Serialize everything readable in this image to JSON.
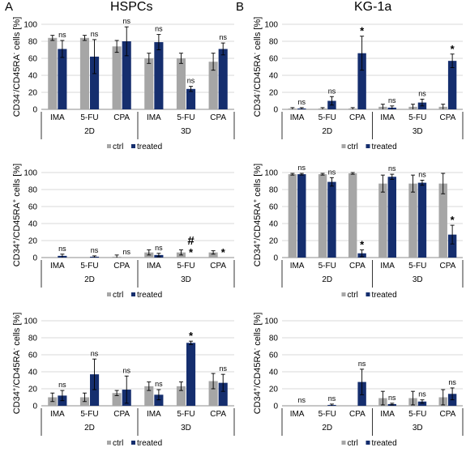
{
  "figure": {
    "panels": [
      {
        "letter": "A",
        "title": "HSPCs"
      },
      {
        "letter": "B",
        "title": "KG-1a"
      }
    ],
    "colors": {
      "ctrl": "#a6a6a6",
      "treated": "#152e6e"
    }
  },
  "chart_data": [
    {
      "type": "bar",
      "panel": "A",
      "row": 1,
      "ylabel_main": "CD34",
      "ylabel_sup1": "-",
      "ylabel_mid": "/CD45RA",
      "ylabel_sup2": "-",
      "ylabel_tail": " cells [%]",
      "ylim": [
        0,
        100
      ],
      "yticks": [
        0,
        20,
        40,
        60,
        80,
        100
      ],
      "categories": [
        "IMA",
        "5-FU",
        "CPA",
        "IMA",
        "5-FU",
        "CPA"
      ],
      "groups": [
        "2D",
        "3D"
      ],
      "series": [
        {
          "name": "ctrl",
          "values": [
            84,
            84,
            74,
            60,
            60,
            56
          ],
          "errors": [
            3,
            3,
            7,
            6,
            6,
            10
          ]
        },
        {
          "name": "treated",
          "values": [
            71,
            62,
            80,
            79,
            24,
            71
          ],
          "errors": [
            10,
            20,
            17,
            9,
            3,
            7
          ]
        }
      ],
      "annotations": [
        "ns",
        "ns",
        "ns",
        "ns",
        "ns",
        "ns"
      ],
      "extra_marks": [],
      "legend": [
        "ctrl",
        "treated"
      ],
      "legend_position": "bottom"
    },
    {
      "type": "bar",
      "panel": "B",
      "row": 1,
      "ylabel_main": "CD34",
      "ylabel_sup1": "-",
      "ylabel_mid": "/CD45RA",
      "ylabel_sup2": "-",
      "ylabel_tail": " cells [%]",
      "ylim": [
        0,
        100
      ],
      "yticks": [
        0,
        20,
        40,
        60,
        80,
        100
      ],
      "categories": [
        "IMA",
        "5-FU",
        "CPA",
        "IMA",
        "5-FU",
        "CPA"
      ],
      "groups": [
        "2D",
        "3D"
      ],
      "series": [
        {
          "name": "ctrl",
          "values": [
            1,
            1,
            1,
            3,
            3,
            3
          ],
          "errors": [
            1,
            1,
            1,
            3,
            3,
            3
          ]
        },
        {
          "name": "treated",
          "values": [
            1,
            10,
            66,
            2,
            8,
            57
          ],
          "errors": [
            1,
            5,
            20,
            2,
            4,
            8
          ]
        }
      ],
      "annotations": [
        "ns",
        "ns",
        "*",
        "ns",
        "ns",
        "*"
      ],
      "extra_marks": [],
      "legend": [
        "ctrl",
        "treated"
      ],
      "legend_position": "bottom"
    },
    {
      "type": "bar",
      "panel": "A",
      "row": 2,
      "ylabel_main": "CD34",
      "ylabel_sup1": "+",
      "ylabel_mid": "/CD45RA",
      "ylabel_sup2": "+",
      "ylabel_tail": " cells [%]",
      "ylim": [
        0,
        100
      ],
      "yticks": [
        0,
        20,
        40,
        60,
        80,
        100
      ],
      "categories": [
        "IMA",
        "5-FU",
        "CPA",
        "IMA",
        "5-FU",
        "CPA"
      ],
      "groups": [
        "2D",
        "3D"
      ],
      "series": [
        {
          "name": "ctrl",
          "values": [
            0,
            0,
            1,
            6,
            6,
            6
          ],
          "errors": [
            0,
            0,
            2,
            3,
            3,
            2
          ]
        },
        {
          "name": "treated",
          "values": [
            2,
            1,
            0,
            3,
            0,
            0
          ],
          "errors": [
            2,
            1,
            0,
            2,
            0,
            0
          ]
        }
      ],
      "annotations": [
        "ns",
        "ns",
        "ns",
        "ns",
        "*",
        "*"
      ],
      "extra_marks": [
        {
          "index": 4,
          "text": "#"
        }
      ],
      "legend": [
        "ctrl",
        "treated"
      ],
      "legend_position": "bottom"
    },
    {
      "type": "bar",
      "panel": "B",
      "row": 2,
      "ylabel_main": "CD34",
      "ylabel_sup1": "+",
      "ylabel_mid": "/CD45RA",
      "ylabel_sup2": "+",
      "ylabel_tail": " cells [%]",
      "ylim": [
        0,
        100
      ],
      "yticks": [
        0,
        20,
        40,
        60,
        80,
        100
      ],
      "categories": [
        "IMA",
        "5-FU",
        "CPA",
        "IMA",
        "5-FU",
        "CPA"
      ],
      "groups": [
        "2D",
        "3D"
      ],
      "series": [
        {
          "name": "ctrl",
          "values": [
            98,
            98,
            99,
            87,
            87,
            87
          ],
          "errors": [
            1,
            1,
            1,
            10,
            10,
            12
          ]
        },
        {
          "name": "treated",
          "values": [
            98,
            89,
            5,
            95,
            88,
            27
          ],
          "errors": [
            1,
            5,
            4,
            3,
            3,
            11
          ]
        }
      ],
      "annotations": [
        "ns",
        "ns",
        "*",
        "ns",
        "ns",
        "*"
      ],
      "extra_marks": [],
      "legend": [
        "ctrl",
        "treated"
      ],
      "legend_position": "bottom"
    },
    {
      "type": "bar",
      "panel": "A",
      "row": 3,
      "ylabel_main": "CD34",
      "ylabel_sup1": "+",
      "ylabel_mid": "/CD45RA",
      "ylabel_sup2": "-",
      "ylabel_tail": " cells [%]",
      "ylim": [
        0,
        100
      ],
      "yticks": [
        0,
        20,
        40,
        60,
        80,
        100
      ],
      "categories": [
        "IMA",
        "5-FU",
        "CPA",
        "IMA",
        "5-FU",
        "CPA"
      ],
      "groups": [
        "2D",
        "3D"
      ],
      "series": [
        {
          "name": "ctrl",
          "values": [
            10,
            10,
            15,
            23,
            23,
            29
          ],
          "errors": [
            5,
            5,
            3,
            5,
            5,
            9
          ]
        },
        {
          "name": "treated",
          "values": [
            12,
            37,
            19,
            13,
            74,
            27
          ],
          "errors": [
            6,
            18,
            16,
            6,
            2,
            10
          ]
        }
      ],
      "annotations": [
        "ns",
        "ns",
        "ns",
        "ns",
        "*",
        "ns"
      ],
      "extra_marks": [],
      "legend": [
        "ctrl",
        "treated"
      ],
      "legend_position": "bottom"
    },
    {
      "type": "bar",
      "panel": "B",
      "row": 3,
      "ylabel_main": "CD34",
      "ylabel_sup1": "+",
      "ylabel_mid": "/CD45RA",
      "ylabel_sup2": "-",
      "ylabel_tail": " cells [%]",
      "ylim": [
        0,
        100
      ],
      "yticks": [
        0,
        20,
        40,
        60,
        80,
        100
      ],
      "categories": [
        "IMA",
        "5-FU",
        "CPA",
        "IMA",
        "5-FU",
        "CPA"
      ],
      "groups": [
        "2D",
        "3D"
      ],
      "series": [
        {
          "name": "ctrl",
          "values": [
            0,
            0,
            0,
            9,
            9,
            10
          ],
          "errors": [
            0,
            0,
            0,
            8,
            8,
            9
          ]
        },
        {
          "name": "treated",
          "values": [
            0,
            1,
            28,
            2,
            5,
            14
          ],
          "errors": [
            0,
            1,
            15,
            1,
            2,
            7
          ]
        }
      ],
      "annotations": [
        "ns",
        "ns",
        "ns",
        "ns",
        "ns",
        "ns"
      ],
      "extra_marks": [],
      "legend": [
        "ctrl",
        "treated"
      ],
      "legend_position": "bottom"
    }
  ]
}
